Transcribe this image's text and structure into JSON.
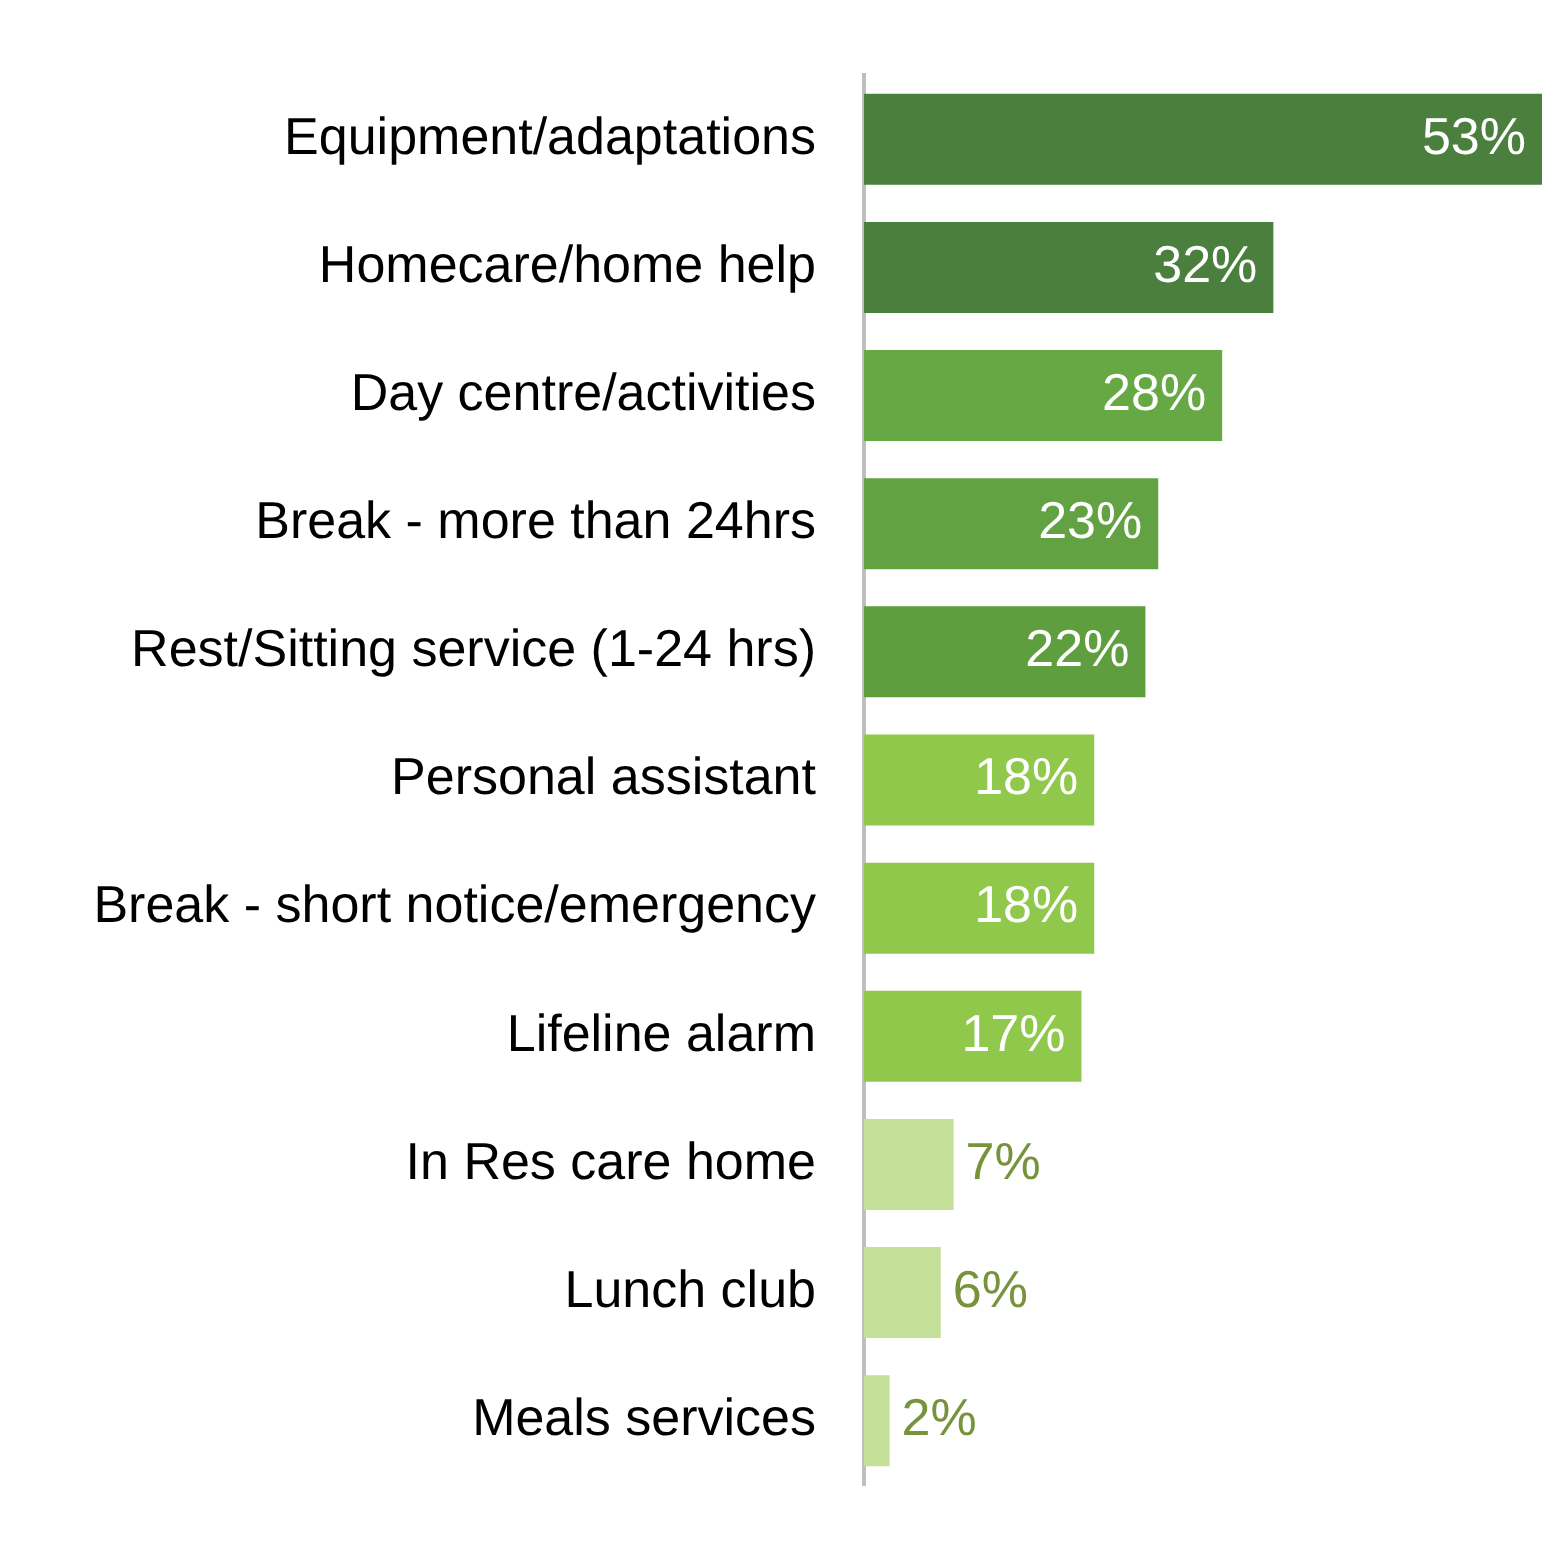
{
  "chart_data": {
    "type": "bar",
    "orientation": "horizontal",
    "categories": [
      "Equipment/adaptations",
      "Homecare/home help",
      "Day centre/activities",
      "Break - more than 24hrs",
      "Rest/Sitting service (1-24 hrs)",
      "Personal assistant",
      "Break - short notice/emergency",
      "Lifeline alarm",
      "In Res care home",
      "Lunch club",
      "Meals services"
    ],
    "values": [
      53,
      32,
      28,
      23,
      22,
      18,
      18,
      17,
      7,
      6,
      2
    ],
    "value_labels": [
      "53%",
      "32%",
      "28%",
      "23%",
      "22%",
      "18%",
      "18%",
      "17%",
      "7%",
      "6%",
      "2%"
    ],
    "colors": [
      "#4a7f3d",
      "#4a7f3d",
      "#66a844",
      "#62a242",
      "#5f9e3f",
      "#8fc84a",
      "#8fc84a",
      "#8fc84a",
      "#c3df98",
      "#c3df98",
      "#c3df98"
    ],
    "grid": false,
    "legend": false
  }
}
